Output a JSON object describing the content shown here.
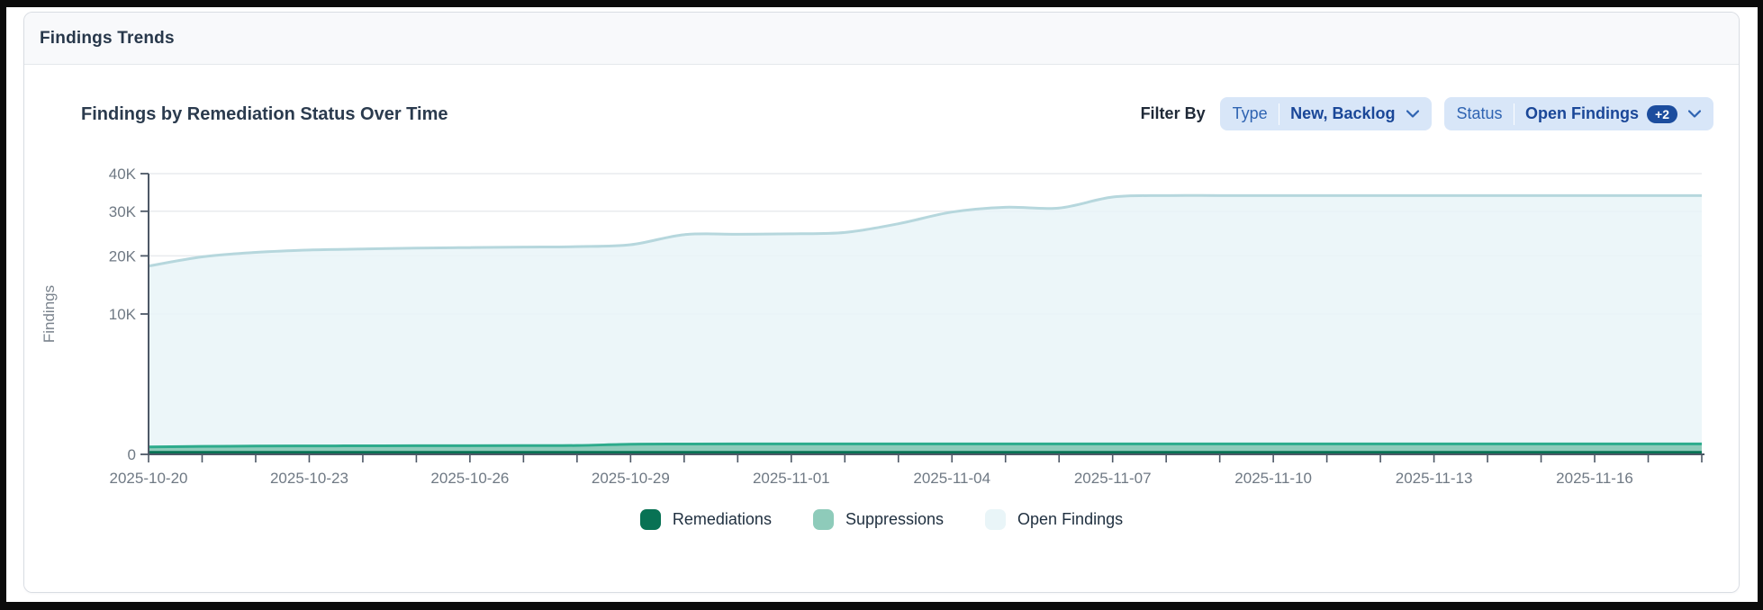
{
  "panel": {
    "title": "Findings Trends"
  },
  "filter_bar": {
    "label": "Filter By",
    "filters": [
      {
        "name": "type",
        "label": "Type",
        "value": "New, Backlog",
        "badge": null
      },
      {
        "name": "status",
        "label": "Status",
        "value": "Open Findings",
        "badge": "+2"
      }
    ]
  },
  "chart_data": {
    "type": "area",
    "title": "Findings by Remediation Status Over Time",
    "xlabel": "",
    "ylabel": "Findings",
    "y_scale": "sqrt",
    "ylim": [
      0,
      40000
    ],
    "y_ticks": [
      0,
      10000,
      20000,
      30000,
      40000
    ],
    "y_tick_labels": [
      "0",
      "10K",
      "20K",
      "30K",
      "40K"
    ],
    "x_tick_label_every_days": 3,
    "grid": true,
    "legend_position": "bottom",
    "x": [
      "2025-10-20",
      "2025-10-21",
      "2025-10-22",
      "2025-10-23",
      "2025-10-24",
      "2025-10-25",
      "2025-10-26",
      "2025-10-27",
      "2025-10-28",
      "2025-10-29",
      "2025-10-30",
      "2025-10-31",
      "2025-11-01",
      "2025-11-02",
      "2025-11-03",
      "2025-11-04",
      "2025-11-05",
      "2025-11-06",
      "2025-11-07",
      "2025-11-08",
      "2025-11-09",
      "2025-11-10",
      "2025-11-11",
      "2025-11-12",
      "2025-11-13",
      "2025-11-14",
      "2025-11-15",
      "2025-11-16",
      "2025-11-17",
      "2025-11-18"
    ],
    "series": [
      {
        "name": "Remediations",
        "line_color": "#087254",
        "fill_color": "#087254",
        "fill_opacity": 1,
        "values": [
          2,
          2,
          2,
          2,
          2,
          2,
          2,
          2,
          2,
          2,
          2,
          2,
          2,
          2,
          2,
          2,
          2,
          2,
          2,
          2,
          2,
          2,
          2,
          2,
          2,
          2,
          2,
          2,
          2,
          2
        ]
      },
      {
        "name": "Suppressions",
        "line_color": "#2dab8c",
        "fill_color": "#8ecbba",
        "fill_opacity": 1,
        "values": [
          28,
          32,
          35,
          36,
          37,
          38,
          38,
          39,
          40,
          52,
          54,
          55,
          55,
          55,
          55,
          55,
          55,
          55,
          55,
          55,
          55,
          55,
          55,
          55,
          55,
          55,
          55,
          55,
          55,
          55
        ]
      },
      {
        "name": "Open Findings",
        "line_color": "#b6d7dd",
        "fill_color": "#e9f5f8",
        "fill_opacity": 0.85,
        "values": [
          18000,
          19800,
          20700,
          21200,
          21400,
          21600,
          21700,
          21800,
          21900,
          22300,
          24500,
          24600,
          24700,
          25000,
          27000,
          29800,
          31000,
          30800,
          33600,
          34000,
          34000,
          34000,
          34000,
          34000,
          34000,
          34000,
          34000,
          34000,
          34000,
          34000
        ]
      }
    ]
  },
  "chart_style": {
    "axis_color": "#4d5866",
    "grid_color": "#e9ebee",
    "tick_text_color": "#6f7984",
    "axis_title_color": "#7a838d"
  }
}
